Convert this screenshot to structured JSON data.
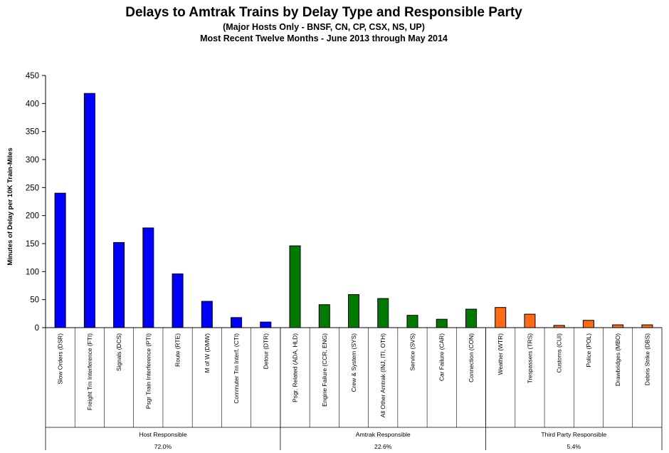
{
  "chart_data": {
    "type": "bar",
    "title": "Delays to Amtrak Trains by Delay Type and Responsible Party",
    "subtitle": [
      "(Major Hosts Only - BNSF, CN, CP, CSX, NS, UP)",
      "Most Recent Twelve Months - June 2013 through May 2014"
    ],
    "ylabel": "Minutes of Delay per 10K Train-Miles",
    "xlabel": "",
    "ylim": [
      0,
      450
    ],
    "yticks": [
      "0",
      "50",
      "100",
      "150",
      "200",
      "250",
      "300",
      "350",
      "400",
      "450"
    ],
    "grid": false,
    "categories": [
      "Slow Orders (DSR)",
      "Freight Trn Interference (FTI)",
      "Signals (DCS)",
      "Psgr Train Interference (PTI)",
      "Route (RTE)",
      "M of W (DMW)",
      "Commuter Trn Interf. (CTI)",
      "Detour (DTR)",
      "Psgr. Related (ADA, HLD)",
      "Engine Failure (CCR, ENG)",
      "Crew & System (SYS)",
      "All Other Amtrak (INJ, ITI, OTH)",
      "Service (SVS)",
      "Car Failure (CAR)",
      "Connection (CON)",
      "Weather (WTR)",
      "Trespassers (TRS)",
      "Customs (CUI)",
      "Police (POL)",
      "Drawbridges (MBO)",
      "Debris Strike (DBS)"
    ],
    "values": [
      240,
      418,
      152,
      178,
      96,
      47,
      18,
      10,
      146,
      41,
      59,
      52,
      22,
      15,
      33,
      36,
      24,
      4,
      13,
      5,
      5
    ],
    "groups": [
      {
        "name": "Host Responsible",
        "share": "72.0%",
        "count": 8,
        "color": "#0000ff"
      },
      {
        "name": "Amtrak Responsible",
        "share": "22.6%",
        "count": 7,
        "color": "#007a00"
      },
      {
        "name": "Third Party Responsible",
        "share": "5.4%",
        "count": 6,
        "color": "#ff6a13"
      }
    ]
  }
}
